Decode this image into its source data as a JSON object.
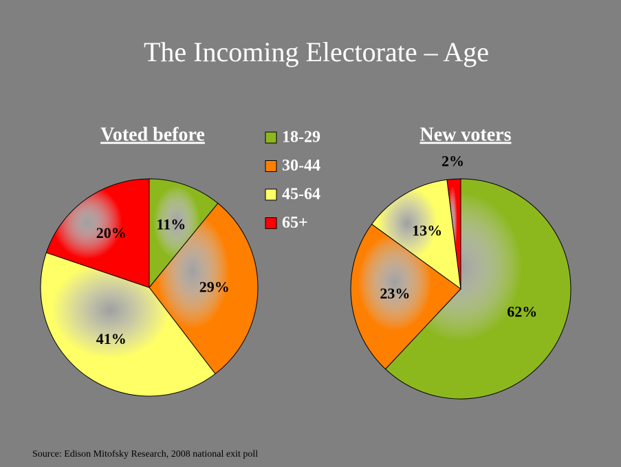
{
  "title": "The Incoming Electorate – Age",
  "source": "Source: Edison Mitofsky Research, 2008 national exit poll",
  "chart_data": [
    {
      "type": "pie",
      "title": "Voted before",
      "categories": [
        "18-29",
        "30-44",
        "45-64",
        "65+"
      ],
      "values": [
        11,
        29,
        41,
        20
      ],
      "value_labels": [
        "11%",
        "29%",
        "41%",
        "20%"
      ],
      "colors": [
        "#8cb81e",
        "#ff7f00",
        "#ffff66",
        "#ff0000"
      ]
    },
    {
      "type": "pie",
      "title": "New voters",
      "values": [
        62,
        23,
        13,
        2
      ],
      "value_labels": [
        "62%",
        "23%",
        "13%",
        "2%"
      ],
      "colors": [
        "#8cb81e",
        "#ff7f00",
        "#ffff66",
        "#ff0000"
      ]
    }
  ]
}
